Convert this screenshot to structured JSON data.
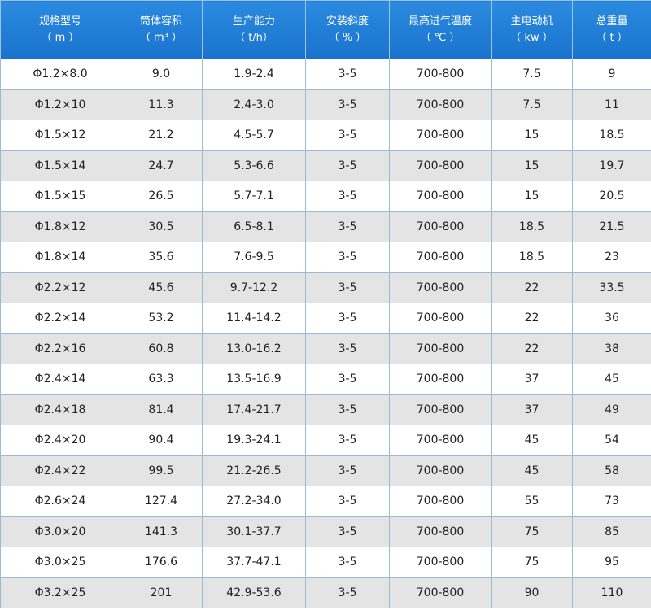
{
  "table": {
    "header": [
      [
        "规格型号",
        "（ m ）"
      ],
      [
        "筒体容积",
        "（ m³ ）"
      ],
      [
        "生产能力",
        "（ t/h）"
      ],
      [
        "安装斜度",
        "（ % ）"
      ],
      [
        "最高进气温度",
        "（ ℃ ）"
      ],
      [
        "主电动机",
        "（ kw ）"
      ],
      [
        "总重量",
        "（ t ）"
      ]
    ],
    "rows": [
      [
        "Φ1.2×8.0",
        "9.0",
        "1.9-2.4",
        "3-5",
        "700-800",
        "7.5",
        "9"
      ],
      [
        "Φ1.2×10",
        "11.3",
        "2.4-3.0",
        "3-5",
        "700-800",
        "7.5",
        "11"
      ],
      [
        "Φ1.5×12",
        "21.2",
        "4.5-5.7",
        "3-5",
        "700-800",
        "15",
        "18.5"
      ],
      [
        "Φ1.5×14",
        "24.7",
        "5.3-6.6",
        "3-5",
        "700-800",
        "15",
        "19.7"
      ],
      [
        "Φ1.5×15",
        "26.5",
        "5.7-7.1",
        "3-5",
        "700-800",
        "15",
        "20.5"
      ],
      [
        "Φ1.8×12",
        "30.5",
        "6.5-8.1",
        "3-5",
        "700-800",
        "18.5",
        "21.5"
      ],
      [
        "Φ1.8×14",
        "35.6",
        "7.6-9.5",
        "3-5",
        "700-800",
        "18.5",
        "23"
      ],
      [
        "Φ2.2×12",
        "45.6",
        "9.7-12.2",
        "3-5",
        "700-800",
        "22",
        "33.5"
      ],
      [
        "Φ2.2×14",
        "53.2",
        "11.4-14.2",
        "3-5",
        "700-800",
        "22",
        "36"
      ],
      [
        "Φ2.2×16",
        "60.8",
        "13.0-16.2",
        "3-5",
        "700-800",
        "22",
        "38"
      ],
      [
        "Φ2.4×14",
        "63.3",
        "13.5-16.9",
        "3-5",
        "700-800",
        "37",
        "45"
      ],
      [
        "Φ2.4×18",
        "81.4",
        "17.4-21.7",
        "3-5",
        "700-800",
        "37",
        "49"
      ],
      [
        "Φ2.4×20",
        "90.4",
        "19.3-24.1",
        "3-5",
        "700-800",
        "45",
        "54"
      ],
      [
        "Φ2.4×22",
        "99.5",
        "21.2-26.5",
        "3-5",
        "700-800",
        "45",
        "58"
      ],
      [
        "Φ2.6×24",
        "127.4",
        "27.2-34.0",
        "3-5",
        "700-800",
        "55",
        "73"
      ],
      [
        "Φ3.0×20",
        "141.3",
        "30.1-37.7",
        "3-5",
        "700-800",
        "75",
        "85"
      ],
      [
        "Φ3.0×25",
        "176.6",
        "37.7-47.1",
        "3-5",
        "700-800",
        "75",
        "95"
      ],
      [
        "Φ3.2×25",
        "201",
        "42.9-53.6",
        "3-5",
        "700-800",
        "90",
        "110"
      ]
    ]
  }
}
